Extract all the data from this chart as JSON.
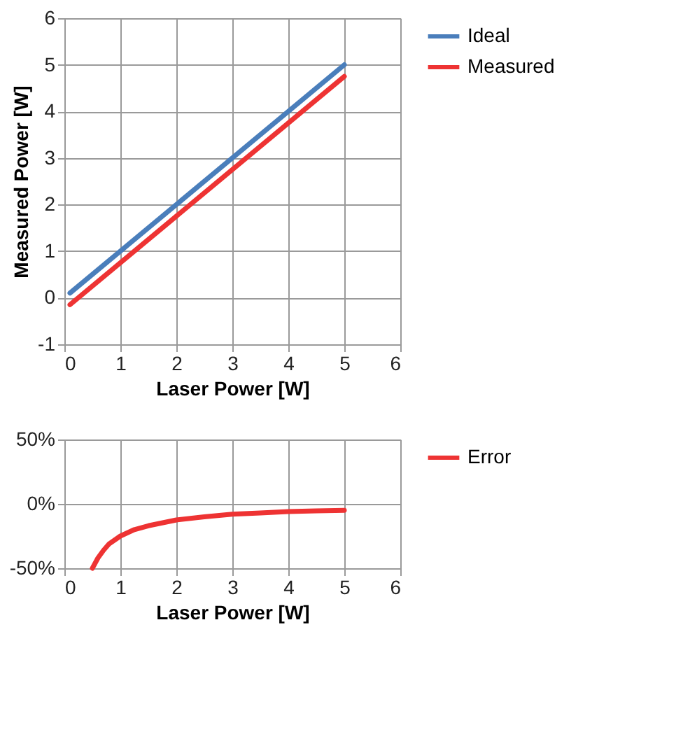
{
  "chart_data": [
    {
      "type": "line",
      "xlabel": "Laser Power [W]",
      "ylabel": "Measured Power [W]",
      "xlim": [
        0,
        6
      ],
      "xticks": [
        0,
        1,
        2,
        3,
        4,
        5,
        6
      ],
      "ylim": [
        -1,
        6
      ],
      "yticks": [
        -1,
        0,
        1,
        2,
        3,
        4,
        5,
        6
      ],
      "grid": true,
      "legend": "right",
      "marker": "none",
      "line_style": "solid",
      "series": [
        {
          "name": "Ideal",
          "color": "#4a7ebb",
          "x": [
            0.1,
            5
          ],
          "values": [
            0.1,
            5
          ]
        },
        {
          "name": "Measured",
          "color": "#ee3333",
          "x": [
            0.1,
            5
          ],
          "values": [
            -0.15,
            4.75
          ]
        }
      ]
    },
    {
      "type": "line",
      "xlabel": "Laser Power [W]",
      "xlim": [
        0,
        6
      ],
      "xticks": [
        0,
        1,
        2,
        3,
        4,
        5,
        6
      ],
      "ylim": [
        -50,
        50
      ],
      "yticks": [
        {
          "value": -50,
          "label": "-50%"
        },
        {
          "value": 0,
          "label": "0%"
        },
        {
          "value": 50,
          "label": "50%"
        }
      ],
      "grid": true,
      "legend": "right",
      "marker": "none",
      "line_style": "solid",
      "series": [
        {
          "name": "Error",
          "color": "#ee3333",
          "x": [
            0.5,
            0.6,
            0.7,
            0.8,
            1,
            1.25,
            1.5,
            2,
            2.5,
            3,
            3.5,
            4,
            4.5,
            5
          ],
          "values": [
            -50,
            -42,
            -36,
            -31,
            -25,
            -20,
            -17,
            -12.5,
            -10,
            -8,
            -7,
            -6,
            -5.5,
            -5
          ]
        }
      ]
    }
  ]
}
